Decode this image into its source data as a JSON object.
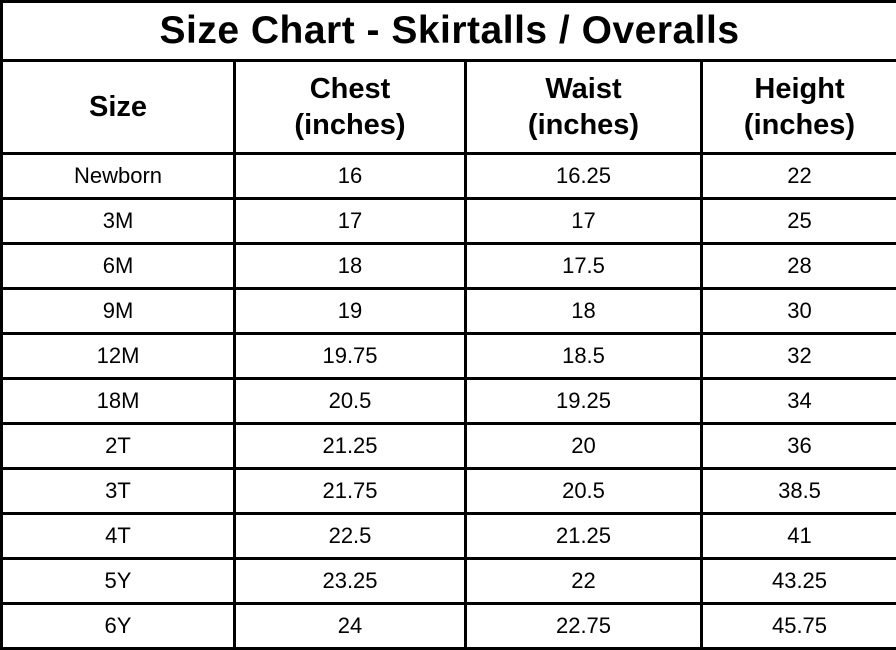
{
  "title": "Size Chart - Skirtalls / Overalls",
  "table": {
    "headers": [
      {
        "label": "Size",
        "sub": ""
      },
      {
        "label": "Chest",
        "sub": "(inches)"
      },
      {
        "label": "Waist",
        "sub": "(inches)"
      },
      {
        "label": "Height",
        "sub": "(inches)"
      }
    ],
    "rows": [
      {
        "size": "Newborn",
        "chest": "16",
        "waist": "16.25",
        "height": "22"
      },
      {
        "size": "3M",
        "chest": "17",
        "waist": "17",
        "height": "25"
      },
      {
        "size": "6M",
        "chest": "18",
        "waist": "17.5",
        "height": "28"
      },
      {
        "size": "9M",
        "chest": "19",
        "waist": "18",
        "height": "30"
      },
      {
        "size": "12M",
        "chest": "19.75",
        "waist": "18.5",
        "height": "32"
      },
      {
        "size": "18M",
        "chest": "20.5",
        "waist": "19.25",
        "height": "34"
      },
      {
        "size": "2T",
        "chest": "21.25",
        "waist": "20",
        "height": "36"
      },
      {
        "size": "3T",
        "chest": "21.75",
        "waist": "20.5",
        "height": "38.5"
      },
      {
        "size": "4T",
        "chest": "22.5",
        "waist": "21.25",
        "height": "41"
      },
      {
        "size": "5Y",
        "chest": "23.25",
        "waist": "22",
        "height": "43.25"
      },
      {
        "size": "6Y",
        "chest": "24",
        "waist": "22.75",
        "height": "45.75"
      }
    ]
  },
  "colors": {
    "border": "#000000",
    "text": "#000000",
    "background": "#ffffff"
  },
  "chart_data": {
    "type": "table",
    "title": "Size Chart - Skirtalls / Overalls",
    "columns": [
      "Size",
      "Chest (inches)",
      "Waist (inches)",
      "Height (inches)"
    ],
    "categories": [
      "Newborn",
      "3M",
      "6M",
      "9M",
      "12M",
      "18M",
      "2T",
      "3T",
      "4T",
      "5Y",
      "6Y"
    ],
    "series": [
      {
        "name": "Chest (inches)",
        "values": [
          16,
          17,
          18,
          19,
          19.75,
          20.5,
          21.25,
          21.75,
          22.5,
          23.25,
          24
        ]
      },
      {
        "name": "Waist (inches)",
        "values": [
          16.25,
          17,
          17.5,
          18,
          18.5,
          19.25,
          20,
          20.5,
          21.25,
          22,
          22.75
        ]
      },
      {
        "name": "Height (inches)",
        "values": [
          22,
          25,
          28,
          30,
          32,
          34,
          36,
          38.5,
          41,
          43.25,
          45.75
        ]
      }
    ]
  }
}
